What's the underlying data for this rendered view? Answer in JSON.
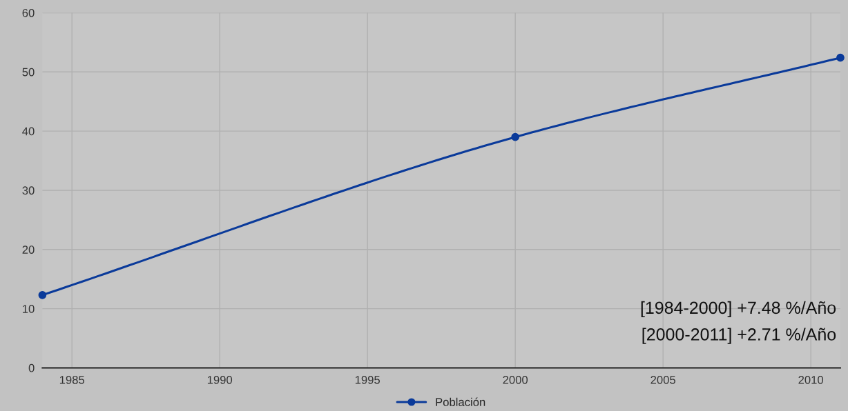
{
  "chart_data": {
    "type": "line",
    "x": [
      1984,
      2000,
      2011
    ],
    "series": [
      {
        "name": "Población",
        "color": "#0a3a9a",
        "values": [
          12.3,
          39.0,
          52.4
        ]
      }
    ],
    "xlim": [
      1984,
      2011
    ],
    "xticks": [
      1985,
      1990,
      1995,
      2000,
      2005,
      2010
    ],
    "ylim": [
      0,
      60
    ],
    "yticks": [
      0,
      10,
      20,
      30,
      40,
      50,
      60
    ],
    "grid": true,
    "legend": "bottom",
    "marker": "circle",
    "line_style": "solid",
    "annotations": [
      "[1984-2000] +7.48 %/Año",
      "[2000-2011] +2.71 %/Año"
    ]
  }
}
